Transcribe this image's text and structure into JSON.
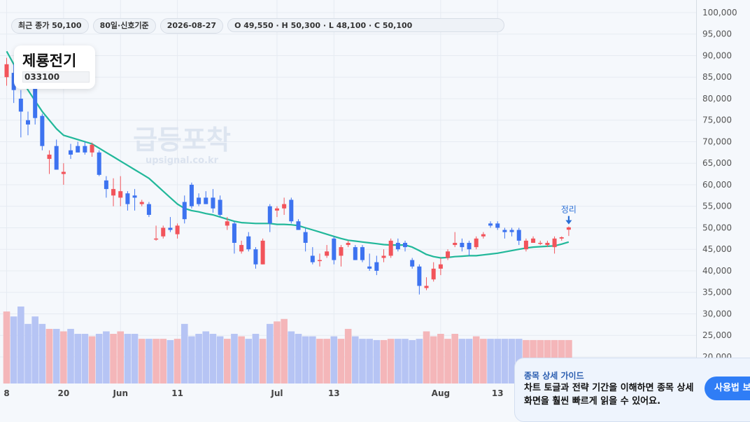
{
  "header": {
    "close_label": "최근 종가 50,100",
    "period_label": "80일·신호기준",
    "date_label": "2026-08-27",
    "ohlc_label": "O 49,550 · H 50,300 · L 48,100 · C 50,100"
  },
  "stock": {
    "name": "제룡전기",
    "code": "033100"
  },
  "watermark": {
    "title": "급등포착",
    "url": "upsignal.co.kr"
  },
  "guide": {
    "title": "종목 상세 가이드",
    "body": "차트 토글과 전략 기간을 이해하면 종목 상세 화면을 훨씬 빠르게 읽을 수 있어요.",
    "button_label": "사용법 보기"
  },
  "chart_data": {
    "type": "candlestick",
    "ylim": [
      0,
      100000
    ],
    "y_ticks": [
      20000,
      25000,
      30000,
      35000,
      40000,
      45000,
      50000,
      55000,
      60000,
      65000,
      70000,
      75000,
      80000,
      85000,
      90000,
      95000,
      100000
    ],
    "y_tick_labels": [
      "20,000",
      "25,000",
      "30,000",
      "35,000",
      "40,000",
      "45,000",
      "50,000",
      "55,000",
      "60,000",
      "65,000",
      "70,000",
      "75,000",
      "80,000",
      "85,000",
      "90,000",
      "95,000",
      "100,000"
    ],
    "x_labels": [
      {
        "index": 0,
        "label": "8"
      },
      {
        "index": 8,
        "label": "20"
      },
      {
        "index": 16,
        "label": "Jun"
      },
      {
        "index": 24,
        "label": "11"
      },
      {
        "index": 38,
        "label": "Jul"
      },
      {
        "index": 46,
        "label": "13"
      },
      {
        "index": 61,
        "label": "Aug"
      },
      {
        "index": 69,
        "label": "13"
      }
    ],
    "candles": [
      {
        "o": 85000,
        "h": 89500,
        "l": 83000,
        "c": 88000
      },
      {
        "o": 86000,
        "h": 88000,
        "l": 79000,
        "c": 82000
      },
      {
        "o": 80000,
        "h": 82000,
        "l": 71000,
        "c": 77000
      },
      {
        "o": 75000,
        "h": 77000,
        "l": 71500,
        "c": 74000
      },
      {
        "o": 83000,
        "h": 85500,
        "l": 74000,
        "c": 75500
      },
      {
        "o": 76000,
        "h": 76500,
        "l": 68000,
        "c": 69000
      },
      {
        "o": 66000,
        "h": 68000,
        "l": 62500,
        "c": 67000
      },
      {
        "o": 69000,
        "h": 70500,
        "l": 63500,
        "c": 63500
      },
      {
        "o": 62500,
        "h": 65000,
        "l": 60000,
        "c": 63000
      },
      {
        "o": 68000,
        "h": 69500,
        "l": 66000,
        "c": 67000
      },
      {
        "o": 69000,
        "h": 70000,
        "l": 67500,
        "c": 67500
      },
      {
        "o": 69000,
        "h": 70000,
        "l": 67000,
        "c": 67500
      },
      {
        "o": 67500,
        "h": 69800,
        "l": 66500,
        "c": 69300
      },
      {
        "o": 67500,
        "h": 68000,
        "l": 62000,
        "c": 62300
      },
      {
        "o": 61000,
        "h": 62000,
        "l": 57000,
        "c": 59000
      },
      {
        "o": 57500,
        "h": 61500,
        "l": 55000,
        "c": 59000
      },
      {
        "o": 57000,
        "h": 62000,
        "l": 55000,
        "c": 58500
      },
      {
        "o": 58000,
        "h": 58500,
        "l": 54000,
        "c": 55500
      },
      {
        "o": 57500,
        "h": 59000,
        "l": 54000,
        "c": 57000
      },
      {
        "o": 55500,
        "h": 56500,
        "l": 55000,
        "c": 56000
      },
      {
        "o": 55500,
        "h": 56000,
        "l": 52500,
        "c": 53000
      },
      {
        "o": 47500,
        "h": 50500,
        "l": 47000,
        "c": 47500
      },
      {
        "o": 48000,
        "h": 50500,
        "l": 47500,
        "c": 50000
      },
      {
        "o": 50000,
        "h": 52500,
        "l": 49000,
        "c": 49500
      },
      {
        "o": 48500,
        "h": 51000,
        "l": 47500,
        "c": 50500
      },
      {
        "o": 56000,
        "h": 57500,
        "l": 51000,
        "c": 52000
      },
      {
        "o": 60000,
        "h": 60500,
        "l": 54500,
        "c": 55000
      },
      {
        "o": 57000,
        "h": 58000,
        "l": 55000,
        "c": 55500
      },
      {
        "o": 57000,
        "h": 58500,
        "l": 55500,
        "c": 55500
      },
      {
        "o": 57000,
        "h": 59000,
        "l": 53500,
        "c": 54500
      },
      {
        "o": 56500,
        "h": 57500,
        "l": 52500,
        "c": 53000
      },
      {
        "o": 50500,
        "h": 52500,
        "l": 49500,
        "c": 51500
      },
      {
        "o": 51000,
        "h": 51500,
        "l": 44000,
        "c": 46500
      },
      {
        "o": 44500,
        "h": 47000,
        "l": 44000,
        "c": 46000
      },
      {
        "o": 48000,
        "h": 49000,
        "l": 44500,
        "c": 45000
      },
      {
        "o": 45000,
        "h": 45500,
        "l": 40500,
        "c": 41500
      },
      {
        "o": 41500,
        "h": 47500,
        "l": 41500,
        "c": 47000
      },
      {
        "o": 55000,
        "h": 55500,
        "l": 49000,
        "c": 51000
      },
      {
        "o": 54000,
        "h": 55000,
        "l": 52500,
        "c": 54500
      },
      {
        "o": 54500,
        "h": 57000,
        "l": 53000,
        "c": 55500
      },
      {
        "o": 56500,
        "h": 57000,
        "l": 51000,
        "c": 51500
      },
      {
        "o": 51500,
        "h": 52000,
        "l": 49500,
        "c": 49500
      },
      {
        "o": 49000,
        "h": 50000,
        "l": 44500,
        "c": 46500
      },
      {
        "o": 43500,
        "h": 45500,
        "l": 41500,
        "c": 42000
      },
      {
        "o": 42500,
        "h": 44000,
        "l": 41000,
        "c": 42500
      },
      {
        "o": 43500,
        "h": 46000,
        "l": 43000,
        "c": 44500
      },
      {
        "o": 47500,
        "h": 48000,
        "l": 41500,
        "c": 42500
      },
      {
        "o": 43500,
        "h": 46000,
        "l": 41000,
        "c": 45500
      },
      {
        "o": 46000,
        "h": 47000,
        "l": 45500,
        "c": 46500
      },
      {
        "o": 45500,
        "h": 46000,
        "l": 42500,
        "c": 42500
      },
      {
        "o": 45500,
        "h": 46000,
        "l": 42000,
        "c": 42500
      },
      {
        "o": 41000,
        "h": 44000,
        "l": 40000,
        "c": 40500
      },
      {
        "o": 42000,
        "h": 43500,
        "l": 39000,
        "c": 40000
      },
      {
        "o": 43000,
        "h": 45000,
        "l": 42000,
        "c": 43500
      },
      {
        "o": 43500,
        "h": 47500,
        "l": 43000,
        "c": 47000
      },
      {
        "o": 46500,
        "h": 47500,
        "l": 44500,
        "c": 45000
      },
      {
        "o": 46500,
        "h": 47000,
        "l": 44500,
        "c": 45500
      },
      {
        "o": 42500,
        "h": 43000,
        "l": 40500,
        "c": 41000
      },
      {
        "o": 41000,
        "h": 41500,
        "l": 34500,
        "c": 36500
      },
      {
        "o": 36000,
        "h": 38500,
        "l": 35500,
        "c": 36500
      },
      {
        "o": 38000,
        "h": 42000,
        "l": 37500,
        "c": 40500
      },
      {
        "o": 40500,
        "h": 43000,
        "l": 39000,
        "c": 41500
      },
      {
        "o": 43000,
        "h": 45000,
        "l": 42500,
        "c": 44500
      },
      {
        "o": 46000,
        "h": 49000,
        "l": 45500,
        "c": 46500
      },
      {
        "o": 46500,
        "h": 47500,
        "l": 44500,
        "c": 45500
      },
      {
        "o": 46500,
        "h": 47000,
        "l": 43500,
        "c": 45000
      },
      {
        "o": 45500,
        "h": 48000,
        "l": 45000,
        "c": 47500
      },
      {
        "o": 48000,
        "h": 49000,
        "l": 47500,
        "c": 48500
      },
      {
        "o": 51000,
        "h": 51500,
        "l": 50000,
        "c": 50500
      },
      {
        "o": 51000,
        "h": 51500,
        "l": 49500,
        "c": 50000
      },
      {
        "o": 49500,
        "h": 50000,
        "l": 47500,
        "c": 49000
      },
      {
        "o": 49500,
        "h": 50000,
        "l": 48000,
        "c": 49000
      },
      {
        "o": 49500,
        "h": 50000,
        "l": 46000,
        "c": 47000
      },
      {
        "o": 45000,
        "h": 47500,
        "l": 44500,
        "c": 47000
      },
      {
        "o": 46500,
        "h": 48000,
        "l": 46500,
        "c": 47500
      },
      {
        "o": 46500,
        "h": 47000,
        "l": 46000,
        "c": 46500
      },
      {
        "o": 46000,
        "h": 47000,
        "l": 45500,
        "c": 46500
      },
      {
        "o": 45500,
        "h": 48000,
        "l": 44000,
        "c": 47500
      },
      {
        "o": 47500,
        "h": 48000,
        "l": 47000,
        "c": 47800
      },
      {
        "o": 49550,
        "h": 50300,
        "l": 48100,
        "c": 50100
      }
    ],
    "ma_line": [
      91000,
      88000,
      85000,
      82000,
      79500,
      77000,
      75000,
      73000,
      71500,
      71000,
      70500,
      70000,
      69500,
      68500,
      67500,
      66500,
      65500,
      64500,
      63500,
      62500,
      61500,
      60000,
      58500,
      57000,
      55500,
      54500,
      54000,
      53700,
      53300,
      53000,
      52500,
      52000,
      51500,
      51200,
      51100,
      51000,
      51000,
      51000,
      50800,
      50800,
      50700,
      50500,
      50000,
      49500,
      49000,
      48500,
      48000,
      47500,
      47100,
      46900,
      46700,
      46500,
      46300,
      46100,
      46000,
      46000,
      46000,
      45500,
      44700,
      43800,
      43300,
      43000,
      43100,
      43300,
      43400,
      43500,
      43500,
      43700,
      43900,
      44100,
      44400,
      44700,
      45000,
      45300,
      45500,
      45600,
      45700,
      45800,
      46200,
      46700
    ],
    "volume": [
      29000,
      27000,
      31000,
      24000,
      27000,
      24000,
      22000,
      22000,
      21000,
      22000,
      20000,
      20000,
      19000,
      20000,
      21000,
      20000,
      21000,
      20000,
      20000,
      18000,
      18000,
      18000,
      18000,
      17500,
      18000,
      24000,
      19000,
      20000,
      21000,
      20000,
      19000,
      18000,
      20000,
      19000,
      18000,
      20000,
      18000,
      24000,
      25000,
      26000,
      21000,
      20000,
      19000,
      19000,
      18000,
      18000,
      19000,
      18000,
      22000,
      19000,
      18000,
      18000,
      17500,
      17500,
      18000,
      18000,
      18000,
      17500,
      18000,
      21000,
      19000,
      20000,
      18000,
      20000,
      18000,
      18000,
      19000,
      18000,
      18000,
      18000,
      18000,
      18000,
      18000,
      17500,
      17500,
      17500,
      17500,
      17500,
      17500,
      17500
    ],
    "signal_label": "정리",
    "colors": {
      "up": "#f2545b",
      "down": "#3d73f0",
      "ma": "#22b89a",
      "vol_up": "#f4b6b9",
      "vol_down": "#b6c4f4",
      "signal": "#2a6fd6"
    }
  }
}
